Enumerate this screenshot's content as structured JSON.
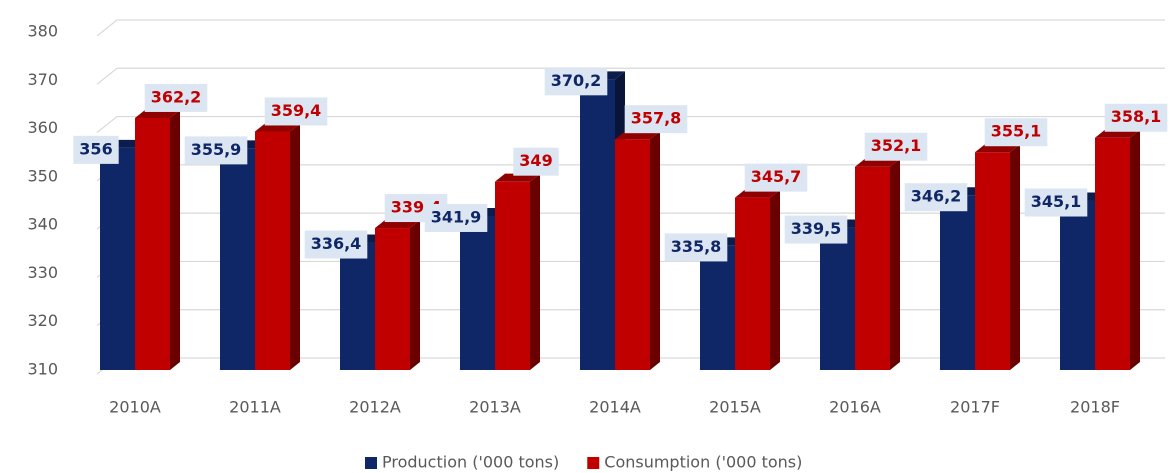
{
  "chart_data": {
    "type": "bar3d",
    "categories": [
      "2010A",
      "2011A",
      "2012A",
      "2013A",
      "2014A",
      "2015A",
      "2016A",
      "2017F",
      "2018F"
    ],
    "series": [
      {
        "name": "Production ('000 tons)",
        "color": "#0f2766",
        "values": [
          356,
          355.9,
          336.4,
          341.9,
          370.2,
          335.8,
          339.5,
          346.2,
          345.1
        ],
        "value_labels": [
          "356",
          "355,9",
          "336,4",
          "341,9",
          "370,2",
          "335,8",
          "339,5",
          "346,2",
          "345,1"
        ]
      },
      {
        "name": "Consumption ('000 tons)",
        "color": "#c00000",
        "values": [
          362.2,
          359.4,
          339.4,
          349,
          357.8,
          345.7,
          352.1,
          355.1,
          358.1
        ],
        "value_labels": [
          "362,2",
          "359,4",
          "339,4",
          "349",
          "357,8",
          "345,7",
          "352,1",
          "355,1",
          "358,1"
        ]
      }
    ],
    "ylim": [
      310,
      380
    ],
    "yticks": [
      310,
      320,
      330,
      340,
      350,
      360,
      370,
      380
    ],
    "grid": true
  }
}
